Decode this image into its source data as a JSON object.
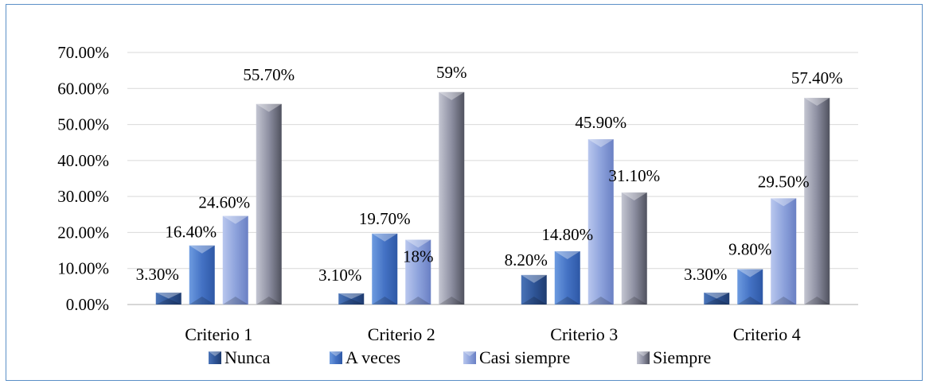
{
  "chart_data": {
    "type": "bar",
    "title": "",
    "xlabel": "",
    "ylabel": "",
    "categories": [
      "Criterio 1",
      "Criterio 2",
      "Criterio 3",
      "Criterio 4"
    ],
    "ylim": [
      0,
      70
    ],
    "yticks": [
      0,
      10,
      20,
      30,
      40,
      50,
      60,
      70
    ],
    "ytick_labels": [
      "0.00%",
      "10.00%",
      "20.00%",
      "30.00%",
      "40.00%",
      "50.00%",
      "60.00%",
      "70.00%"
    ],
    "grid": true,
    "legend_position": "bottom",
    "series": [
      {
        "name": "Nunca",
        "values": [
          3.3,
          3.1,
          8.2,
          3.3
        ],
        "labels": [
          "3.30%",
          "3.10%",
          "8.20%",
          "3.30%"
        ],
        "color": "#3a5f9e"
      },
      {
        "name": "A veces",
        "values": [
          16.4,
          19.7,
          14.8,
          9.8
        ],
        "labels": [
          "16.40%",
          "19.70%",
          "14.80%",
          "9.80%"
        ],
        "color": "#4a7fce"
      },
      {
        "name": "Casi siempre",
        "values": [
          24.6,
          18,
          45.9,
          29.5
        ],
        "labels": [
          "24.60%",
          "18%",
          "45.90%",
          "29.50%"
        ],
        "color": "#8fa3d9"
      },
      {
        "name": "Siempre",
        "values": [
          55.7,
          59,
          31.1,
          57.4
        ],
        "labels": [
          "55.70%",
          "59%",
          "31.10%",
          "57.40%"
        ],
        "color": "#8c8fa0"
      }
    ]
  }
}
